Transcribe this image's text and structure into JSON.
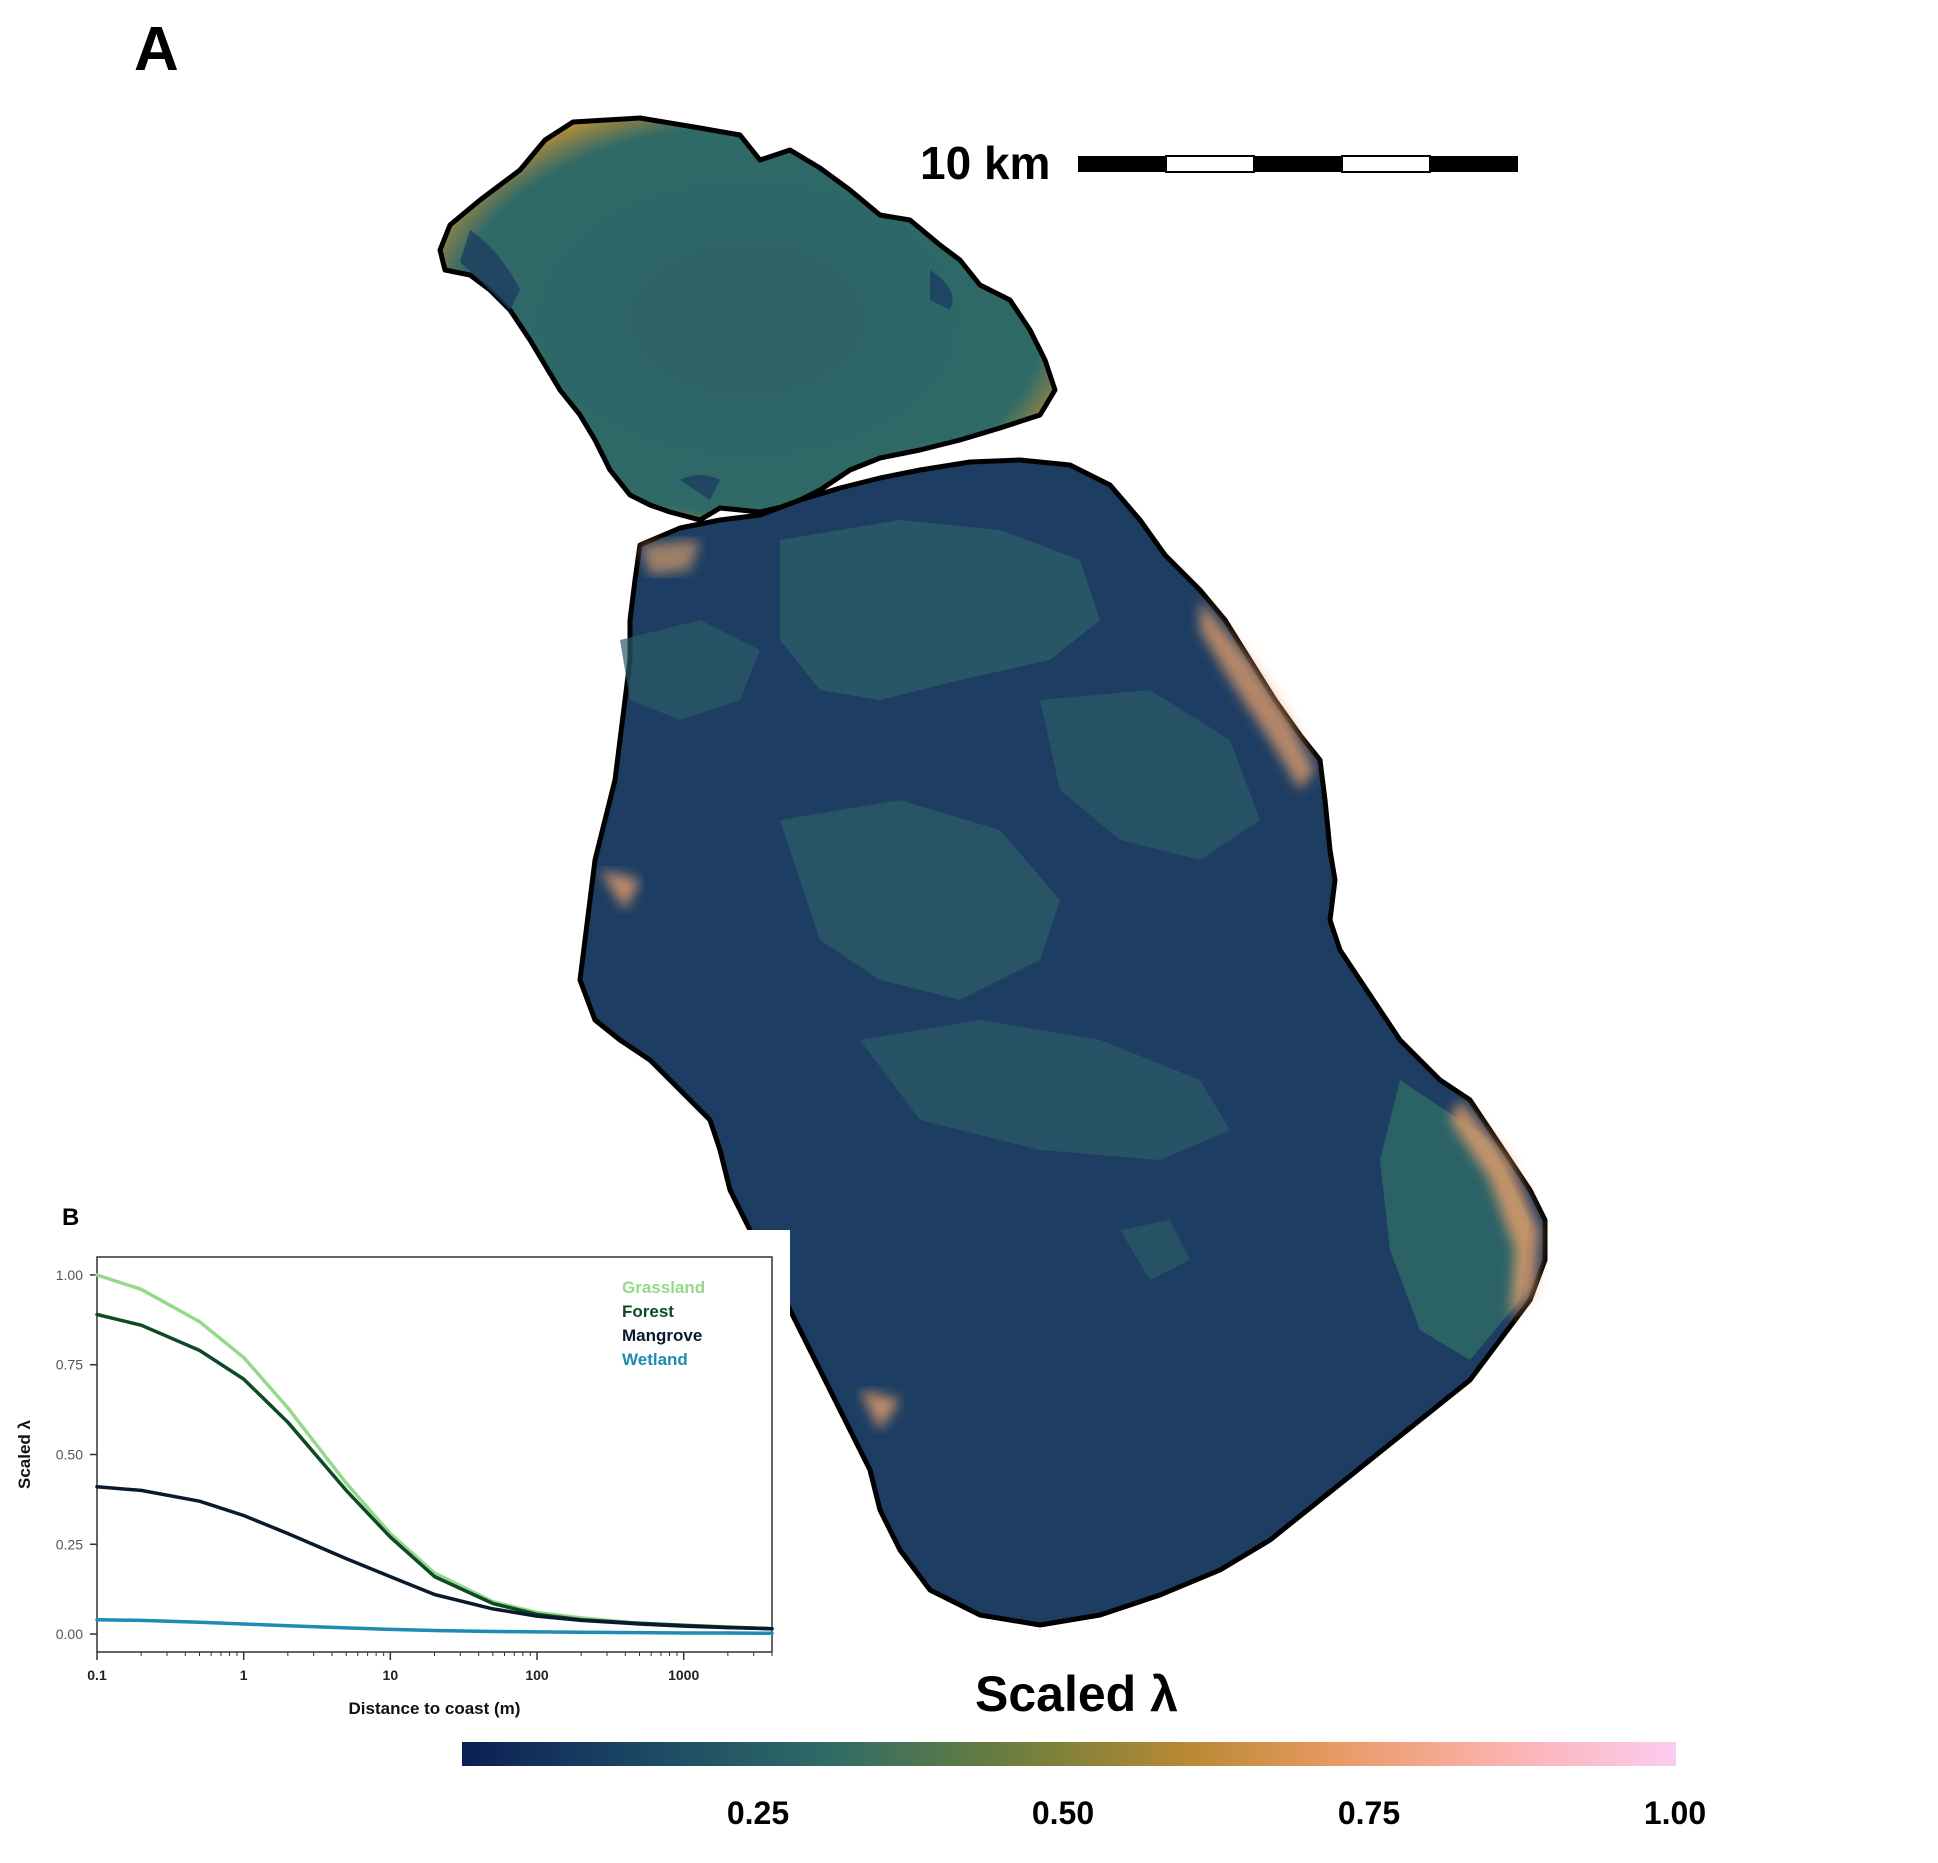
{
  "panel_a": {
    "label": "A"
  },
  "panel_b": {
    "label": "B"
  },
  "scale_bar": {
    "label": "10 km"
  },
  "legend": {
    "title": "Scaled λ",
    "ticks": [
      "0.25",
      "0.50",
      "0.75",
      "1.00"
    ],
    "tick_values": [
      0.25,
      0.5,
      0.75,
      1.0
    ],
    "colors": [
      "#0c1f55",
      "#1c4863",
      "#2e6b67",
      "#6b7e3d",
      "#b98934",
      "#e89a63",
      "#fbb2b0",
      "#fbccf0"
    ]
  },
  "chart_data": {
    "type": "line",
    "title": "",
    "xlabel": "Distance to coast (m)",
    "ylabel": "Scaled λ",
    "x_scale": "log",
    "xlim": [
      0.1,
      4000
    ],
    "ylim": [
      -0.05,
      1.05
    ],
    "x_ticks": [
      "0.1",
      "1",
      "10",
      "100",
      "1000"
    ],
    "x_tick_values": [
      0.1,
      1,
      10,
      100,
      1000
    ],
    "y_ticks": [
      "0.00",
      "0.25",
      "0.50",
      "0.75",
      "1.00"
    ],
    "y_tick_values": [
      0,
      0.25,
      0.5,
      0.75,
      1.0
    ],
    "legend_position": "top-right",
    "x": [
      0.1,
      0.2,
      0.5,
      1,
      2,
      5,
      10,
      20,
      50,
      100,
      200,
      500,
      1000,
      2000,
      4000
    ],
    "series": [
      {
        "name": "Grassland",
        "color": "#95d98a",
        "values": [
          1.0,
          0.96,
          0.87,
          0.77,
          0.63,
          0.42,
          0.28,
          0.17,
          0.09,
          0.06,
          0.045,
          0.03,
          0.025,
          0.02,
          0.015
        ]
      },
      {
        "name": "Forest",
        "color": "#0d4a25",
        "values": [
          0.89,
          0.86,
          0.79,
          0.71,
          0.59,
          0.4,
          0.27,
          0.16,
          0.085,
          0.055,
          0.04,
          0.03,
          0.024,
          0.019,
          0.015
        ]
      },
      {
        "name": "Mangrove",
        "color": "#0a1a2e",
        "values": [
          0.41,
          0.4,
          0.37,
          0.33,
          0.28,
          0.21,
          0.16,
          0.11,
          0.07,
          0.05,
          0.038,
          0.028,
          0.022,
          0.018,
          0.015
        ]
      },
      {
        "name": "Wetland",
        "color": "#1f8bb0",
        "values": [
          0.04,
          0.038,
          0.033,
          0.028,
          0.023,
          0.017,
          0.013,
          0.01,
          0.007,
          0.006,
          0.005,
          0.004,
          0.003,
          0.003,
          0.002
        ]
      }
    ]
  }
}
